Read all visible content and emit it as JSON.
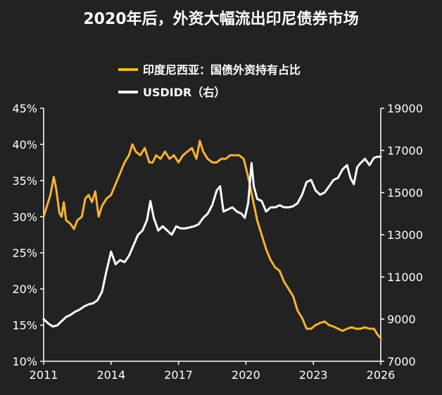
{
  "chart_data": {
    "type": "line",
    "title": "2020年后，外资大幅流出印尼债券市场",
    "x_ticks": [
      "2011",
      "2014",
      "2017",
      "2020",
      "2023",
      "2026"
    ],
    "y_left_ticks": [
      "45%",
      "40%",
      "35%",
      "30%",
      "25%",
      "20%",
      "15%",
      "10%"
    ],
    "y_right_ticks": [
      "19000",
      "17000",
      "15000",
      "13000",
      "11000",
      "9000",
      "7000"
    ],
    "xlim": [
      2011,
      2026
    ],
    "ylim_left": [
      10,
      45
    ],
    "ylim_right": [
      7000,
      19000
    ],
    "legend_position": "top-center",
    "series": [
      {
        "name": "印度尼西亚：国债外资持有占比",
        "axis": "left",
        "color": "#f5b335",
        "points": [
          [
            2011.0,
            30.0
          ],
          [
            2011.15,
            31.5
          ],
          [
            2011.3,
            33.0
          ],
          [
            2011.45,
            35.5
          ],
          [
            2011.55,
            34.0
          ],
          [
            2011.7,
            30.5
          ],
          [
            2011.8,
            30.0
          ],
          [
            2011.9,
            32.0
          ],
          [
            2012.0,
            29.5
          ],
          [
            2012.2,
            29.0
          ],
          [
            2012.35,
            28.3
          ],
          [
            2012.5,
            29.5
          ],
          [
            2012.7,
            30.0
          ],
          [
            2012.85,
            32.5
          ],
          [
            2013.0,
            33.0
          ],
          [
            2013.15,
            32.0
          ],
          [
            2013.3,
            33.5
          ],
          [
            2013.45,
            30.0
          ],
          [
            2013.6,
            31.5
          ],
          [
            2013.8,
            32.5
          ],
          [
            2014.0,
            33.0
          ],
          [
            2014.2,
            34.5
          ],
          [
            2014.4,
            36.0
          ],
          [
            2014.6,
            37.5
          ],
          [
            2014.8,
            38.5
          ],
          [
            2014.95,
            40.0
          ],
          [
            2015.1,
            39.0
          ],
          [
            2015.3,
            38.5
          ],
          [
            2015.5,
            39.5
          ],
          [
            2015.7,
            37.5
          ],
          [
            2015.85,
            37.5
          ],
          [
            2016.0,
            38.5
          ],
          [
            2016.2,
            38.0
          ],
          [
            2016.4,
            39.0
          ],
          [
            2016.6,
            38.0
          ],
          [
            2016.8,
            38.5
          ],
          [
            2017.0,
            37.5
          ],
          [
            2017.2,
            38.5
          ],
          [
            2017.4,
            39.0
          ],
          [
            2017.6,
            39.5
          ],
          [
            2017.8,
            38.0
          ],
          [
            2017.95,
            40.5
          ],
          [
            2018.1,
            39.0
          ],
          [
            2018.3,
            38.0
          ],
          [
            2018.5,
            37.5
          ],
          [
            2018.7,
            37.5
          ],
          [
            2018.9,
            38.0
          ],
          [
            2019.1,
            38.0
          ],
          [
            2019.3,
            38.5
          ],
          [
            2019.5,
            38.5
          ],
          [
            2019.7,
            38.5
          ],
          [
            2019.9,
            38.0
          ],
          [
            2020.1,
            35.5
          ],
          [
            2020.3,
            32.5
          ],
          [
            2020.5,
            29.5
          ],
          [
            2020.7,
            27.5
          ],
          [
            2020.9,
            25.5
          ],
          [
            2021.1,
            24.0
          ],
          [
            2021.3,
            23.0
          ],
          [
            2021.5,
            22.5
          ],
          [
            2021.7,
            21.0
          ],
          [
            2021.9,
            20.0
          ],
          [
            2022.1,
            19.0
          ],
          [
            2022.3,
            17.0
          ],
          [
            2022.5,
            16.0
          ],
          [
            2022.7,
            14.5
          ],
          [
            2022.9,
            14.5
          ],
          [
            2023.1,
            15.0
          ],
          [
            2023.3,
            15.3
          ],
          [
            2023.5,
            15.5
          ],
          [
            2023.7,
            15.0
          ],
          [
            2023.9,
            14.8
          ],
          [
            2024.1,
            14.5
          ],
          [
            2024.3,
            14.2
          ],
          [
            2024.5,
            14.5
          ],
          [
            2024.7,
            14.7
          ],
          [
            2024.9,
            14.5
          ],
          [
            2025.1,
            14.5
          ],
          [
            2025.3,
            14.7
          ],
          [
            2025.5,
            14.5
          ],
          [
            2025.7,
            14.5
          ],
          [
            2025.85,
            13.7
          ],
          [
            2026.0,
            13.2
          ]
        ]
      },
      {
        "name": "USDIDR（右）",
        "axis": "right",
        "color": "#ffffff",
        "points": [
          [
            2011.0,
            9000
          ],
          [
            2011.2,
            8800
          ],
          [
            2011.4,
            8650
          ],
          [
            2011.6,
            8700
          ],
          [
            2011.8,
            8900
          ],
          [
            2012.0,
            9100
          ],
          [
            2012.2,
            9200
          ],
          [
            2012.4,
            9350
          ],
          [
            2012.6,
            9450
          ],
          [
            2012.8,
            9600
          ],
          [
            2013.0,
            9700
          ],
          [
            2013.2,
            9750
          ],
          [
            2013.4,
            9900
          ],
          [
            2013.6,
            10300
          ],
          [
            2013.8,
            11300
          ],
          [
            2014.0,
            12200
          ],
          [
            2014.2,
            11600
          ],
          [
            2014.4,
            11800
          ],
          [
            2014.6,
            11700
          ],
          [
            2014.8,
            12000
          ],
          [
            2015.0,
            12500
          ],
          [
            2015.2,
            13000
          ],
          [
            2015.4,
            13200
          ],
          [
            2015.6,
            13700
          ],
          [
            2015.75,
            14600
          ],
          [
            2015.9,
            13800
          ],
          [
            2016.1,
            13200
          ],
          [
            2016.3,
            13400
          ],
          [
            2016.5,
            13200
          ],
          [
            2016.7,
            13000
          ],
          [
            2016.9,
            13400
          ],
          [
            2017.1,
            13300
          ],
          [
            2017.3,
            13300
          ],
          [
            2017.5,
            13350
          ],
          [
            2017.7,
            13400
          ],
          [
            2017.9,
            13500
          ],
          [
            2018.1,
            13800
          ],
          [
            2018.3,
            14000
          ],
          [
            2018.5,
            14400
          ],
          [
            2018.7,
            15100
          ],
          [
            2018.85,
            15300
          ],
          [
            2019.0,
            14100
          ],
          [
            2019.2,
            14200
          ],
          [
            2019.4,
            14300
          ],
          [
            2019.6,
            14100
          ],
          [
            2019.8,
            14000
          ],
          [
            2019.95,
            13800
          ],
          [
            2020.1,
            14500
          ],
          [
            2020.25,
            16400
          ],
          [
            2020.35,
            15300
          ],
          [
            2020.5,
            14700
          ],
          [
            2020.7,
            14600
          ],
          [
            2020.9,
            14100
          ],
          [
            2021.1,
            14300
          ],
          [
            2021.3,
            14300
          ],
          [
            2021.5,
            14400
          ],
          [
            2021.7,
            14300
          ],
          [
            2021.9,
            14300
          ],
          [
            2022.1,
            14350
          ],
          [
            2022.3,
            14500
          ],
          [
            2022.5,
            14900
          ],
          [
            2022.7,
            15500
          ],
          [
            2022.9,
            15600
          ],
          [
            2023.1,
            15100
          ],
          [
            2023.3,
            14900
          ],
          [
            2023.5,
            15000
          ],
          [
            2023.7,
            15300
          ],
          [
            2023.9,
            15600
          ],
          [
            2024.1,
            15700
          ],
          [
            2024.3,
            16100
          ],
          [
            2024.5,
            16300
          ],
          [
            2024.65,
            15700
          ],
          [
            2024.8,
            15400
          ],
          [
            2024.95,
            16200
          ],
          [
            2025.1,
            16400
          ],
          [
            2025.3,
            16600
          ],
          [
            2025.5,
            16300
          ],
          [
            2025.7,
            16650
          ],
          [
            2025.85,
            16700
          ],
          [
            2026.0,
            16700
          ]
        ]
      }
    ]
  }
}
